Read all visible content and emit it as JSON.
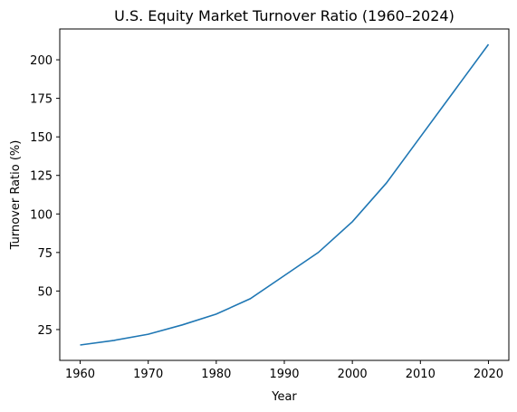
{
  "chart_data": {
    "type": "line",
    "title": "U.S. Equity Market Turnover Ratio (1960–2024)",
    "xlabel": "Year",
    "ylabel": "Turnover Ratio (%)",
    "xlim": [
      1957,
      2023
    ],
    "ylim": [
      5,
      220
    ],
    "xticks": [
      1960,
      1970,
      1980,
      1990,
      2000,
      2010,
      2020
    ],
    "yticks": [
      25,
      50,
      75,
      100,
      125,
      150,
      175,
      200
    ],
    "grid": false,
    "line_color": "#1f77b4",
    "series": [
      {
        "x": [
          1960,
          1965,
          1970,
          1975,
          1980,
          1985,
          1990,
          1995,
          2000,
          2005,
          2010,
          2015,
          2020
        ],
        "y": [
          15,
          18,
          22,
          28,
          35,
          45,
          60,
          75,
          95,
          120,
          150,
          180,
          210
        ]
      }
    ]
  }
}
